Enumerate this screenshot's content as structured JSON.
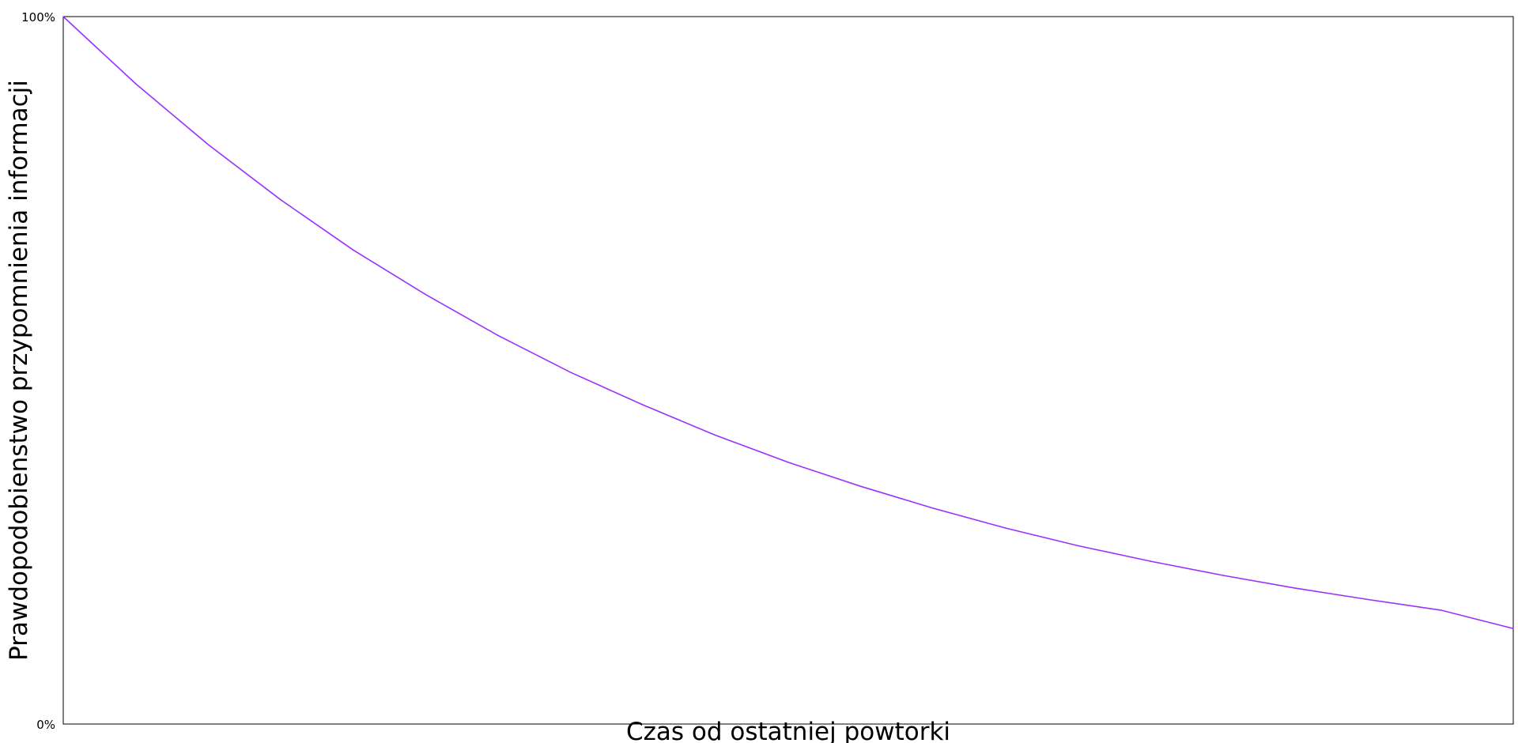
{
  "chart_data": {
    "type": "line",
    "title": "",
    "xlabel": "Czas od ostatniej powtorki",
    "ylabel": "Prawdopodobienstwo przypomnienia informacji",
    "ylim": [
      0,
      100
    ],
    "xlim": [
      0,
      100
    ],
    "yticks": [
      "0%",
      "100%"
    ],
    "grid": false,
    "legend": "none",
    "line_color": "#9b30ff",
    "series": [
      {
        "x": [
          0,
          5,
          10,
          15,
          20,
          25,
          30,
          35,
          40,
          45,
          50,
          55,
          60,
          65,
          70,
          75,
          80,
          85,
          90,
          95,
          100
        ],
        "values": [
          100,
          90.5,
          81.9,
          74.1,
          67.0,
          60.7,
          54.9,
          49.7,
          45.1,
          40.8,
          37.0,
          33.6,
          30.5,
          27.7,
          25.2,
          23.0,
          21.0,
          19.2,
          17.6,
          16.1,
          13.5
        ]
      }
    ]
  }
}
